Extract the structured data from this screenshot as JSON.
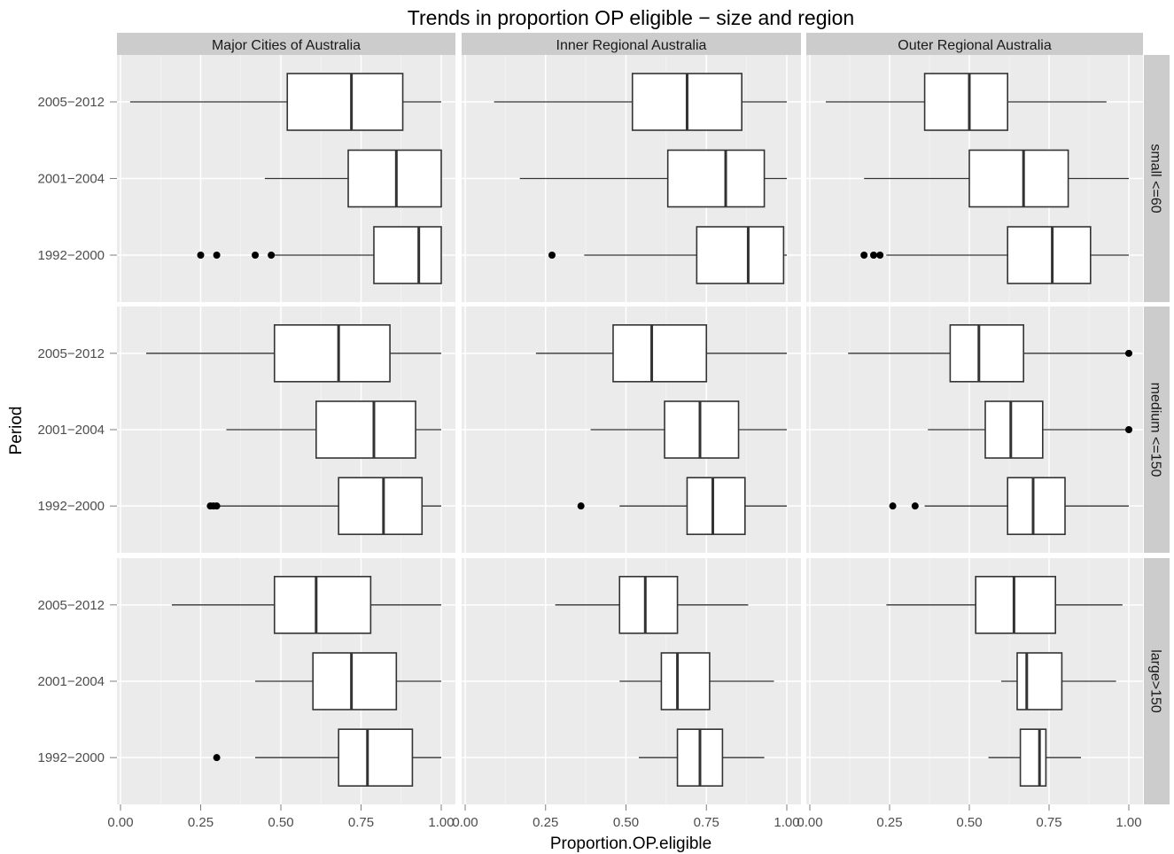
{
  "chart_data": {
    "type": "boxplot",
    "title": "Trends in proportion OP eligible − size and region",
    "xlabel": "Proportion.OP.eligible",
    "ylabel": "Period",
    "xlim": [
      0,
      1
    ],
    "x_ticks": [
      "0.00",
      "0.25",
      "0.50",
      "0.75",
      "1.00"
    ],
    "x_tick_values": [
      0,
      0.25,
      0.5,
      0.75,
      1
    ],
    "categories": [
      "2005−2012",
      "2001−2004",
      "1992−2000"
    ],
    "columns": [
      "Major Cities of Australia",
      "Inner Regional Australia",
      "Outer Regional Australia"
    ],
    "rows": [
      "small <=60",
      "medium <=150",
      "large>150"
    ],
    "grid": true,
    "legend": "none",
    "colors": {
      "panel_bg": "#ebebeb",
      "strip_bg": "#cccccc",
      "grid": "#ffffff",
      "box_fill": "#ffffff",
      "box_line": "#333333",
      "outlier": "#000000"
    },
    "panels": [
      {
        "row": "small <=60",
        "column": "Major Cities of Australia",
        "boxes": [
          {
            "period": "2005−2012",
            "min": 0.03,
            "q1": 0.52,
            "median": 0.72,
            "q3": 0.88,
            "max": 1.0,
            "outliers": []
          },
          {
            "period": "2001−2004",
            "min": 0.45,
            "q1": 0.71,
            "median": 0.86,
            "q3": 1.0,
            "max": 1.0,
            "outliers": []
          },
          {
            "period": "1992−2000",
            "min": 0.47,
            "q1": 0.79,
            "median": 0.93,
            "q3": 1.0,
            "max": 1.0,
            "outliers": [
              0.25,
              0.3,
              0.42,
              0.47
            ]
          }
        ]
      },
      {
        "row": "small <=60",
        "column": "Inner Regional Australia",
        "boxes": [
          {
            "period": "2005−2012",
            "min": 0.09,
            "q1": 0.52,
            "median": 0.69,
            "q3": 0.86,
            "max": 1.0,
            "outliers": []
          },
          {
            "period": "2001−2004",
            "min": 0.17,
            "q1": 0.63,
            "median": 0.81,
            "q3": 0.93,
            "max": 1.0,
            "outliers": []
          },
          {
            "period": "1992−2000",
            "min": 0.37,
            "q1": 0.72,
            "median": 0.88,
            "q3": 0.99,
            "max": 1.0,
            "outliers": [
              0.27
            ]
          }
        ]
      },
      {
        "row": "small <=60",
        "column": "Outer Regional Australia",
        "boxes": [
          {
            "period": "2005−2012",
            "min": 0.05,
            "q1": 0.36,
            "median": 0.5,
            "q3": 0.62,
            "max": 0.93,
            "outliers": []
          },
          {
            "period": "2001−2004",
            "min": 0.17,
            "q1": 0.5,
            "median": 0.67,
            "q3": 0.81,
            "max": 1.0,
            "outliers": []
          },
          {
            "period": "1992−2000",
            "min": 0.24,
            "q1": 0.62,
            "median": 0.76,
            "q3": 0.88,
            "max": 1.0,
            "outliers": [
              0.17,
              0.2,
              0.22
            ]
          }
        ]
      },
      {
        "row": "medium <=150",
        "column": "Major Cities of Australia",
        "boxes": [
          {
            "period": "2005−2012",
            "min": 0.08,
            "q1": 0.48,
            "median": 0.68,
            "q3": 0.84,
            "max": 1.0,
            "outliers": []
          },
          {
            "period": "2001−2004",
            "min": 0.33,
            "q1": 0.61,
            "median": 0.79,
            "q3": 0.92,
            "max": 1.0,
            "outliers": []
          },
          {
            "period": "1992−2000",
            "min": 0.3,
            "q1": 0.68,
            "median": 0.82,
            "q3": 0.94,
            "max": 1.0,
            "outliers": [
              0.28,
              0.29,
              0.3
            ]
          }
        ]
      },
      {
        "row": "medium <=150",
        "column": "Inner Regional Australia",
        "boxes": [
          {
            "period": "2005−2012",
            "min": 0.22,
            "q1": 0.46,
            "median": 0.58,
            "q3": 0.75,
            "max": 1.0,
            "outliers": []
          },
          {
            "period": "2001−2004",
            "min": 0.39,
            "q1": 0.62,
            "median": 0.73,
            "q3": 0.85,
            "max": 1.0,
            "outliers": []
          },
          {
            "period": "1992−2000",
            "min": 0.48,
            "q1": 0.69,
            "median": 0.77,
            "q3": 0.87,
            "max": 1.0,
            "outliers": [
              0.36
            ]
          }
        ]
      },
      {
        "row": "medium <=150",
        "column": "Outer Regional Australia",
        "boxes": [
          {
            "period": "2005−2012",
            "min": 0.12,
            "q1": 0.44,
            "median": 0.53,
            "q3": 0.67,
            "max": 1.0,
            "outliers": [
              1.0
            ]
          },
          {
            "period": "2001−2004",
            "min": 0.37,
            "q1": 0.55,
            "median": 0.63,
            "q3": 0.73,
            "max": 1.0,
            "outliers": [
              1.0
            ]
          },
          {
            "period": "1992−2000",
            "min": 0.36,
            "q1": 0.62,
            "median": 0.7,
            "q3": 0.8,
            "max": 1.0,
            "outliers": [
              0.26,
              0.33
            ]
          }
        ]
      },
      {
        "row": "large>150",
        "column": "Major Cities of Australia",
        "boxes": [
          {
            "period": "2005−2012",
            "min": 0.16,
            "q1": 0.48,
            "median": 0.61,
            "q3": 0.78,
            "max": 1.0,
            "outliers": []
          },
          {
            "period": "2001−2004",
            "min": 0.42,
            "q1": 0.6,
            "median": 0.72,
            "q3": 0.86,
            "max": 1.0,
            "outliers": []
          },
          {
            "period": "1992−2000",
            "min": 0.42,
            "q1": 0.68,
            "median": 0.77,
            "q3": 0.91,
            "max": 1.0,
            "outliers": [
              0.3
            ]
          }
        ]
      },
      {
        "row": "large>150",
        "column": "Inner Regional Australia",
        "boxes": [
          {
            "period": "2005−2012",
            "min": 0.28,
            "q1": 0.48,
            "median": 0.56,
            "q3": 0.66,
            "max": 0.88,
            "outliers": []
          },
          {
            "period": "2001−2004",
            "min": 0.48,
            "q1": 0.61,
            "median": 0.66,
            "q3": 0.76,
            "max": 0.96,
            "outliers": []
          },
          {
            "period": "1992−2000",
            "min": 0.54,
            "q1": 0.66,
            "median": 0.73,
            "q3": 0.8,
            "max": 0.93,
            "outliers": []
          }
        ]
      },
      {
        "row": "large>150",
        "column": "Outer Regional Australia",
        "boxes": [
          {
            "period": "2005−2012",
            "min": 0.24,
            "q1": 0.52,
            "median": 0.64,
            "q3": 0.77,
            "max": 0.98,
            "outliers": []
          },
          {
            "period": "2001−2004",
            "min": 0.6,
            "q1": 0.65,
            "median": 0.68,
            "q3": 0.79,
            "max": 0.96,
            "outliers": []
          },
          {
            "period": "1992−2000",
            "min": 0.56,
            "q1": 0.66,
            "median": 0.72,
            "q3": 0.74,
            "max": 0.85,
            "outliers": []
          }
        ]
      }
    ]
  }
}
